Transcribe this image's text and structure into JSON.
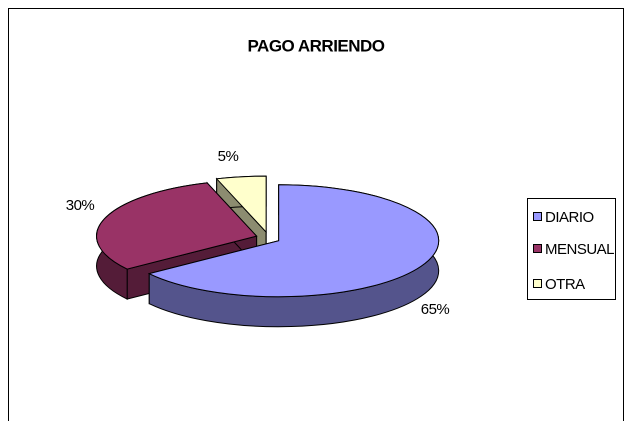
{
  "chart_data": {
    "type": "pie",
    "title": "PAGO ARRIENDO",
    "categories": [
      "DIARIO",
      "MENSUAL",
      "OTRA"
    ],
    "values": [
      65,
      30,
      5
    ],
    "value_labels": [
      "65%",
      "30%",
      "5%"
    ],
    "colors": [
      "#9999ff",
      "#993366",
      "#ffffcc"
    ],
    "legend": "right"
  }
}
